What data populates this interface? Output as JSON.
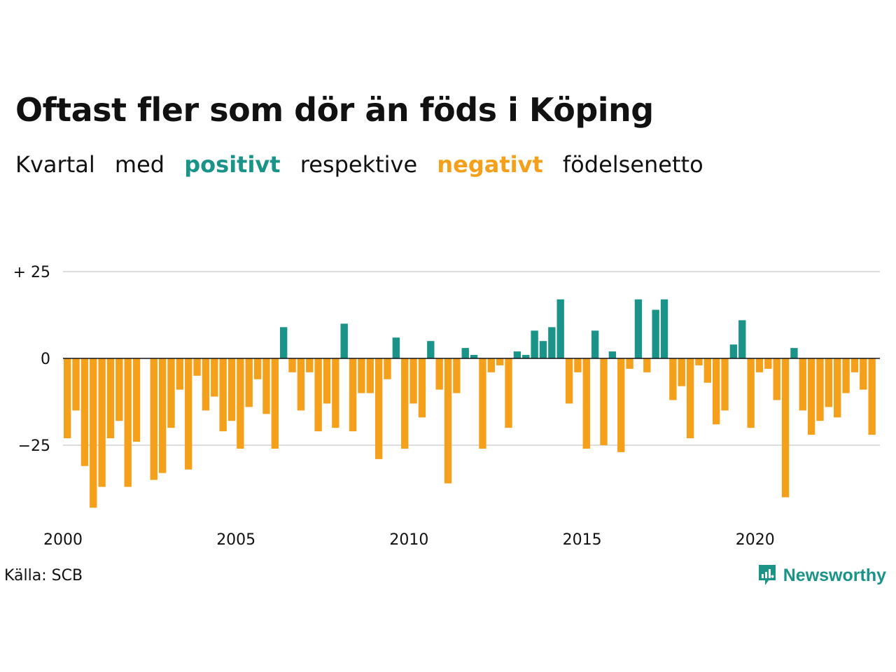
{
  "header": {
    "title": "Oftast fler som dör än föds i Köping",
    "subtitle": {
      "w1": "Kvartal",
      "w2": "med",
      "positive": "positivt",
      "w3": "respektive",
      "negative": "negativt",
      "w4": "födelsenetto"
    }
  },
  "footer": {
    "source": "Källa: SCB",
    "brand": "Newsworthy"
  },
  "colors": {
    "positive": "#1a9388",
    "negative": "#f5a01a",
    "grid": "#dddddd",
    "zero_line": "#111111"
  },
  "chart_data": {
    "type": "bar",
    "title": "Oftast fler som dör än föds i Köping",
    "subtitle": "Kvartal med positivt respektive negativt födelsenetto",
    "x_start": "2000 Q1",
    "x_end": "2023 Q4",
    "x_ticks": [
      "2000",
      "2005",
      "2010",
      "2015",
      "2020"
    ],
    "y_ticks": [
      25,
      0,
      -25
    ],
    "y_tick_labels": [
      "+ 25",
      "0",
      "−25"
    ],
    "ylim": [
      -45,
      30
    ],
    "grid": true,
    "series": [
      {
        "values": [
          -23,
          -15,
          -31,
          -43,
          -37,
          -23,
          -18,
          -37,
          -24,
          0,
          -35,
          -33,
          -20,
          -9,
          -32,
          -5,
          -15,
          -11,
          -21,
          -18,
          -26,
          -14,
          -6,
          -16,
          -26,
          9,
          -4,
          -15,
          -4,
          -21,
          -13,
          -20,
          10,
          -21,
          -10,
          -10,
          -29,
          -6,
          6,
          -26,
          -13,
          -17,
          5,
          -9,
          -36,
          -10,
          3,
          1,
          -26,
          -4,
          -2,
          -20,
          2,
          1,
          8,
          5,
          9,
          17,
          -13,
          -4,
          -26,
          8,
          -25,
          2,
          -27,
          -3,
          17,
          -4,
          14,
          17,
          -12,
          -8,
          -23,
          -2,
          -7,
          -19,
          -15,
          4,
          11,
          -20,
          -4,
          -3,
          -12,
          -40,
          3,
          -15,
          -22,
          -18,
          -14,
          -17,
          -10,
          -4,
          -9,
          -22
        ]
      }
    ]
  }
}
